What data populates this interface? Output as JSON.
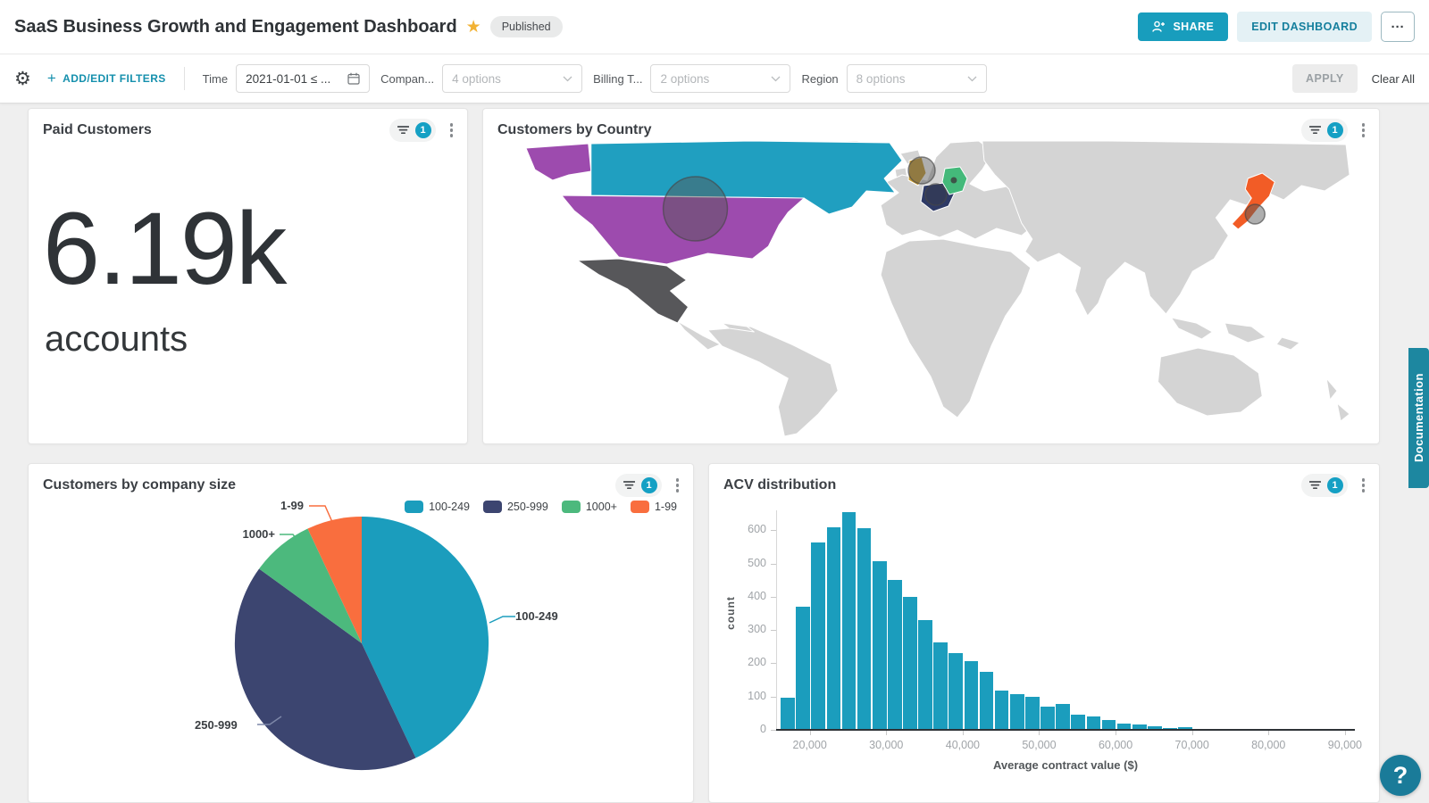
{
  "header": {
    "title": "SaaS Business Growth and Engagement Dashboard",
    "status_badge": "Published",
    "share_button": "SHARE",
    "edit_button": "EDIT DASHBOARD",
    "more_button": "···"
  },
  "filter_bar": {
    "add_edit_label": "ADD/EDIT FILTERS",
    "filters": [
      {
        "label": "Time",
        "value": "2021-01-01 ≤ ...",
        "type": "date"
      },
      {
        "label": "Compan...",
        "value": "4 options",
        "type": "select"
      },
      {
        "label": "Billing T...",
        "value": "2 options",
        "type": "select"
      },
      {
        "label": "Region",
        "value": "8 options",
        "type": "select"
      }
    ],
    "apply_button": "APPLY",
    "clear_all": "Clear All"
  },
  "widgets": {
    "indicator": {
      "title": "Paid Customers",
      "filter_count": "1"
    },
    "map": {
      "title": "Customers by Country",
      "filter_count": "1"
    },
    "pie": {
      "title": "Customers by company size",
      "filter_count": "1"
    },
    "histogram": {
      "title": "ACV distribution",
      "filter_count": "1"
    }
  },
  "chart_data": [
    {
      "widget": "Paid Customers",
      "type": "indicator",
      "value": "6.19k",
      "unit": "accounts"
    },
    {
      "widget": "Customers by Country",
      "type": "choropleth",
      "base_land_color": "#d4d4d4",
      "countries": [
        {
          "name": "Canada",
          "color": "#209fc0"
        },
        {
          "name": "United States",
          "color": "#9d4bae",
          "bubble": "large"
        },
        {
          "name": "Alaska (US)",
          "color": "#9d4bae"
        },
        {
          "name": "Mexico",
          "color": "#57575a"
        },
        {
          "name": "United Kingdom",
          "color": "#c79b30",
          "bubble": "medium"
        },
        {
          "name": "France",
          "color": "#2e3a66",
          "bubble": "medium"
        },
        {
          "name": "Germany",
          "color": "#44b97a",
          "bubble": "dot"
        },
        {
          "name": "Japan",
          "color": "#f25c26",
          "bubble": "small"
        }
      ]
    },
    {
      "widget": "Customers by company size",
      "type": "pie",
      "legend_position": "top-right",
      "slices": [
        {
          "label": "100-249",
          "percent": 43,
          "color": "#1b9dbd",
          "leader_color": "#1b9dbd"
        },
        {
          "label": "250-999",
          "percent": 42,
          "color": "#3c4570",
          "leader_color": "#7d87a8"
        },
        {
          "label": "1000+",
          "percent": 8,
          "color": "#4cb97d",
          "leader_color": "#4cb97d"
        },
        {
          "label": "1-99",
          "percent": 7,
          "color": "#f96e3e",
          "leader_color": "#f96e3e"
        }
      ]
    },
    {
      "widget": "ACV distribution",
      "type": "histogram",
      "xlabel": "Average contract value ($)",
      "ylabel": "count",
      "bar_color": "#1b9dbd",
      "bin_start": 16000,
      "bin_width": 2000,
      "values": [
        97,
        370,
        563,
        610,
        655,
        607,
        507,
        450,
        401,
        330,
        262,
        230,
        207,
        175,
        117,
        107,
        100,
        70,
        79,
        45,
        40,
        30,
        20,
        17,
        12,
        5,
        8,
        0,
        4,
        0,
        0,
        0,
        0,
        0,
        0,
        0,
        0
      ],
      "x_ticks": [
        "20,000",
        "30,000",
        "40,000",
        "50,000",
        "60,000",
        "70,000",
        "80,000",
        "90,000"
      ],
      "x_tick_values": [
        20000,
        30000,
        40000,
        50000,
        60000,
        70000,
        80000,
        90000
      ],
      "y_ticks": [
        0,
        100,
        200,
        300,
        400,
        500,
        600
      ],
      "xlim": [
        15600,
        91300
      ],
      "ylim": [
        0,
        660
      ],
      "grid": false
    }
  ],
  "side_panel": {
    "documentation_tab": "Documentation",
    "help_button": "?"
  }
}
